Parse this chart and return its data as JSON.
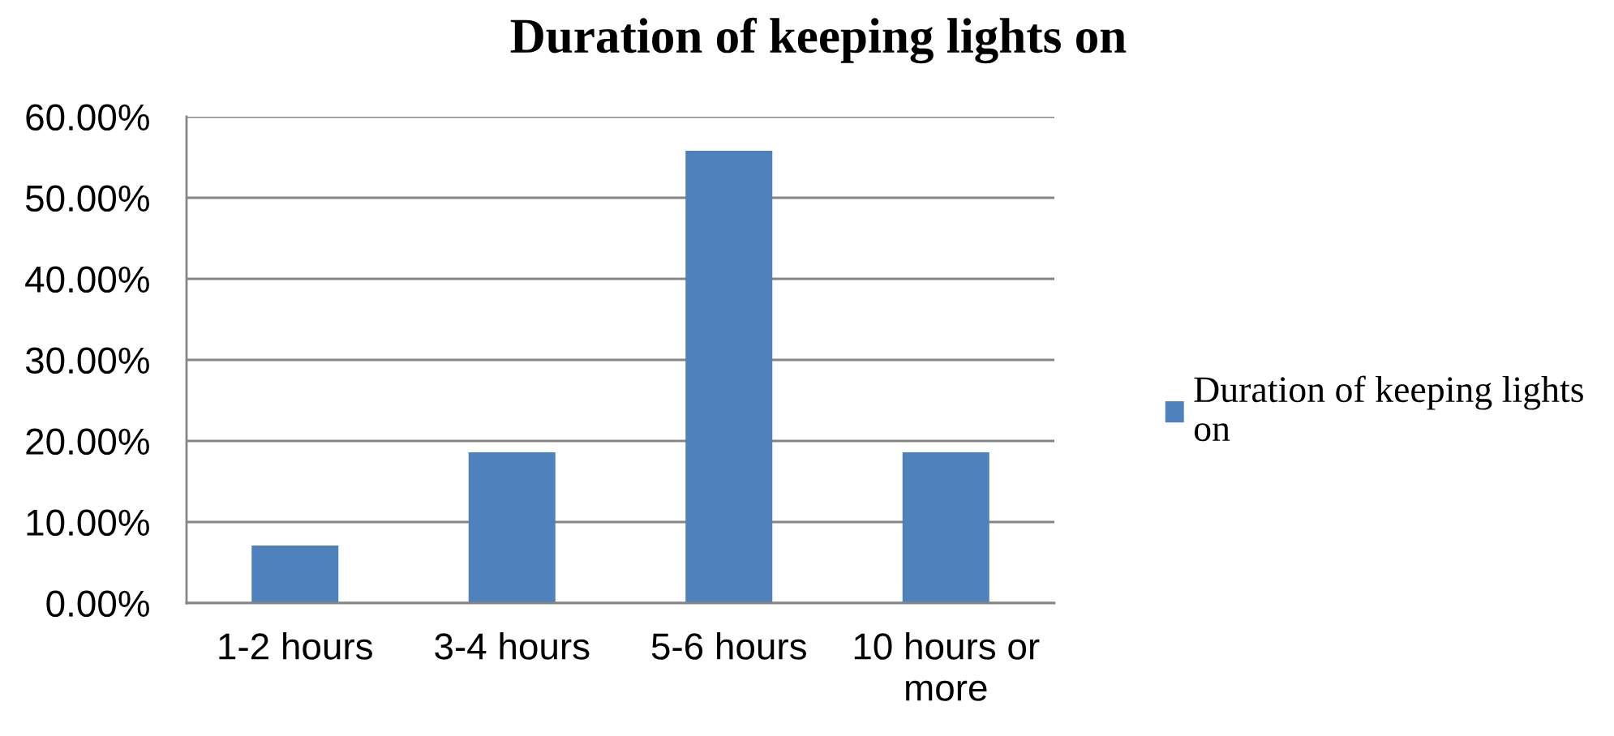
{
  "chart_data": {
    "type": "bar",
    "title": "Duration of keeping lights on",
    "categories": [
      "1-2 hours",
      "3-4 hours",
      "5-6 hours",
      "10 hours or more"
    ],
    "series": [
      {
        "name": "Duration of keeping lights on",
        "color": "#4f81bd",
        "values": [
          7.1,
          18.6,
          55.8,
          18.6
        ]
      }
    ],
    "ylim": [
      0,
      60
    ],
    "yticks": [
      {
        "value": 0,
        "label": "0.00%"
      },
      {
        "value": 10,
        "label": "10.00%"
      },
      {
        "value": 20,
        "label": "20.00%"
      },
      {
        "value": 30,
        "label": "30.00%"
      },
      {
        "value": 40,
        "label": "40.00%"
      },
      {
        "value": 50,
        "label": "50.00%"
      },
      {
        "value": 60,
        "label": "60.00%"
      }
    ],
    "grid": "y",
    "legend": "right"
  }
}
